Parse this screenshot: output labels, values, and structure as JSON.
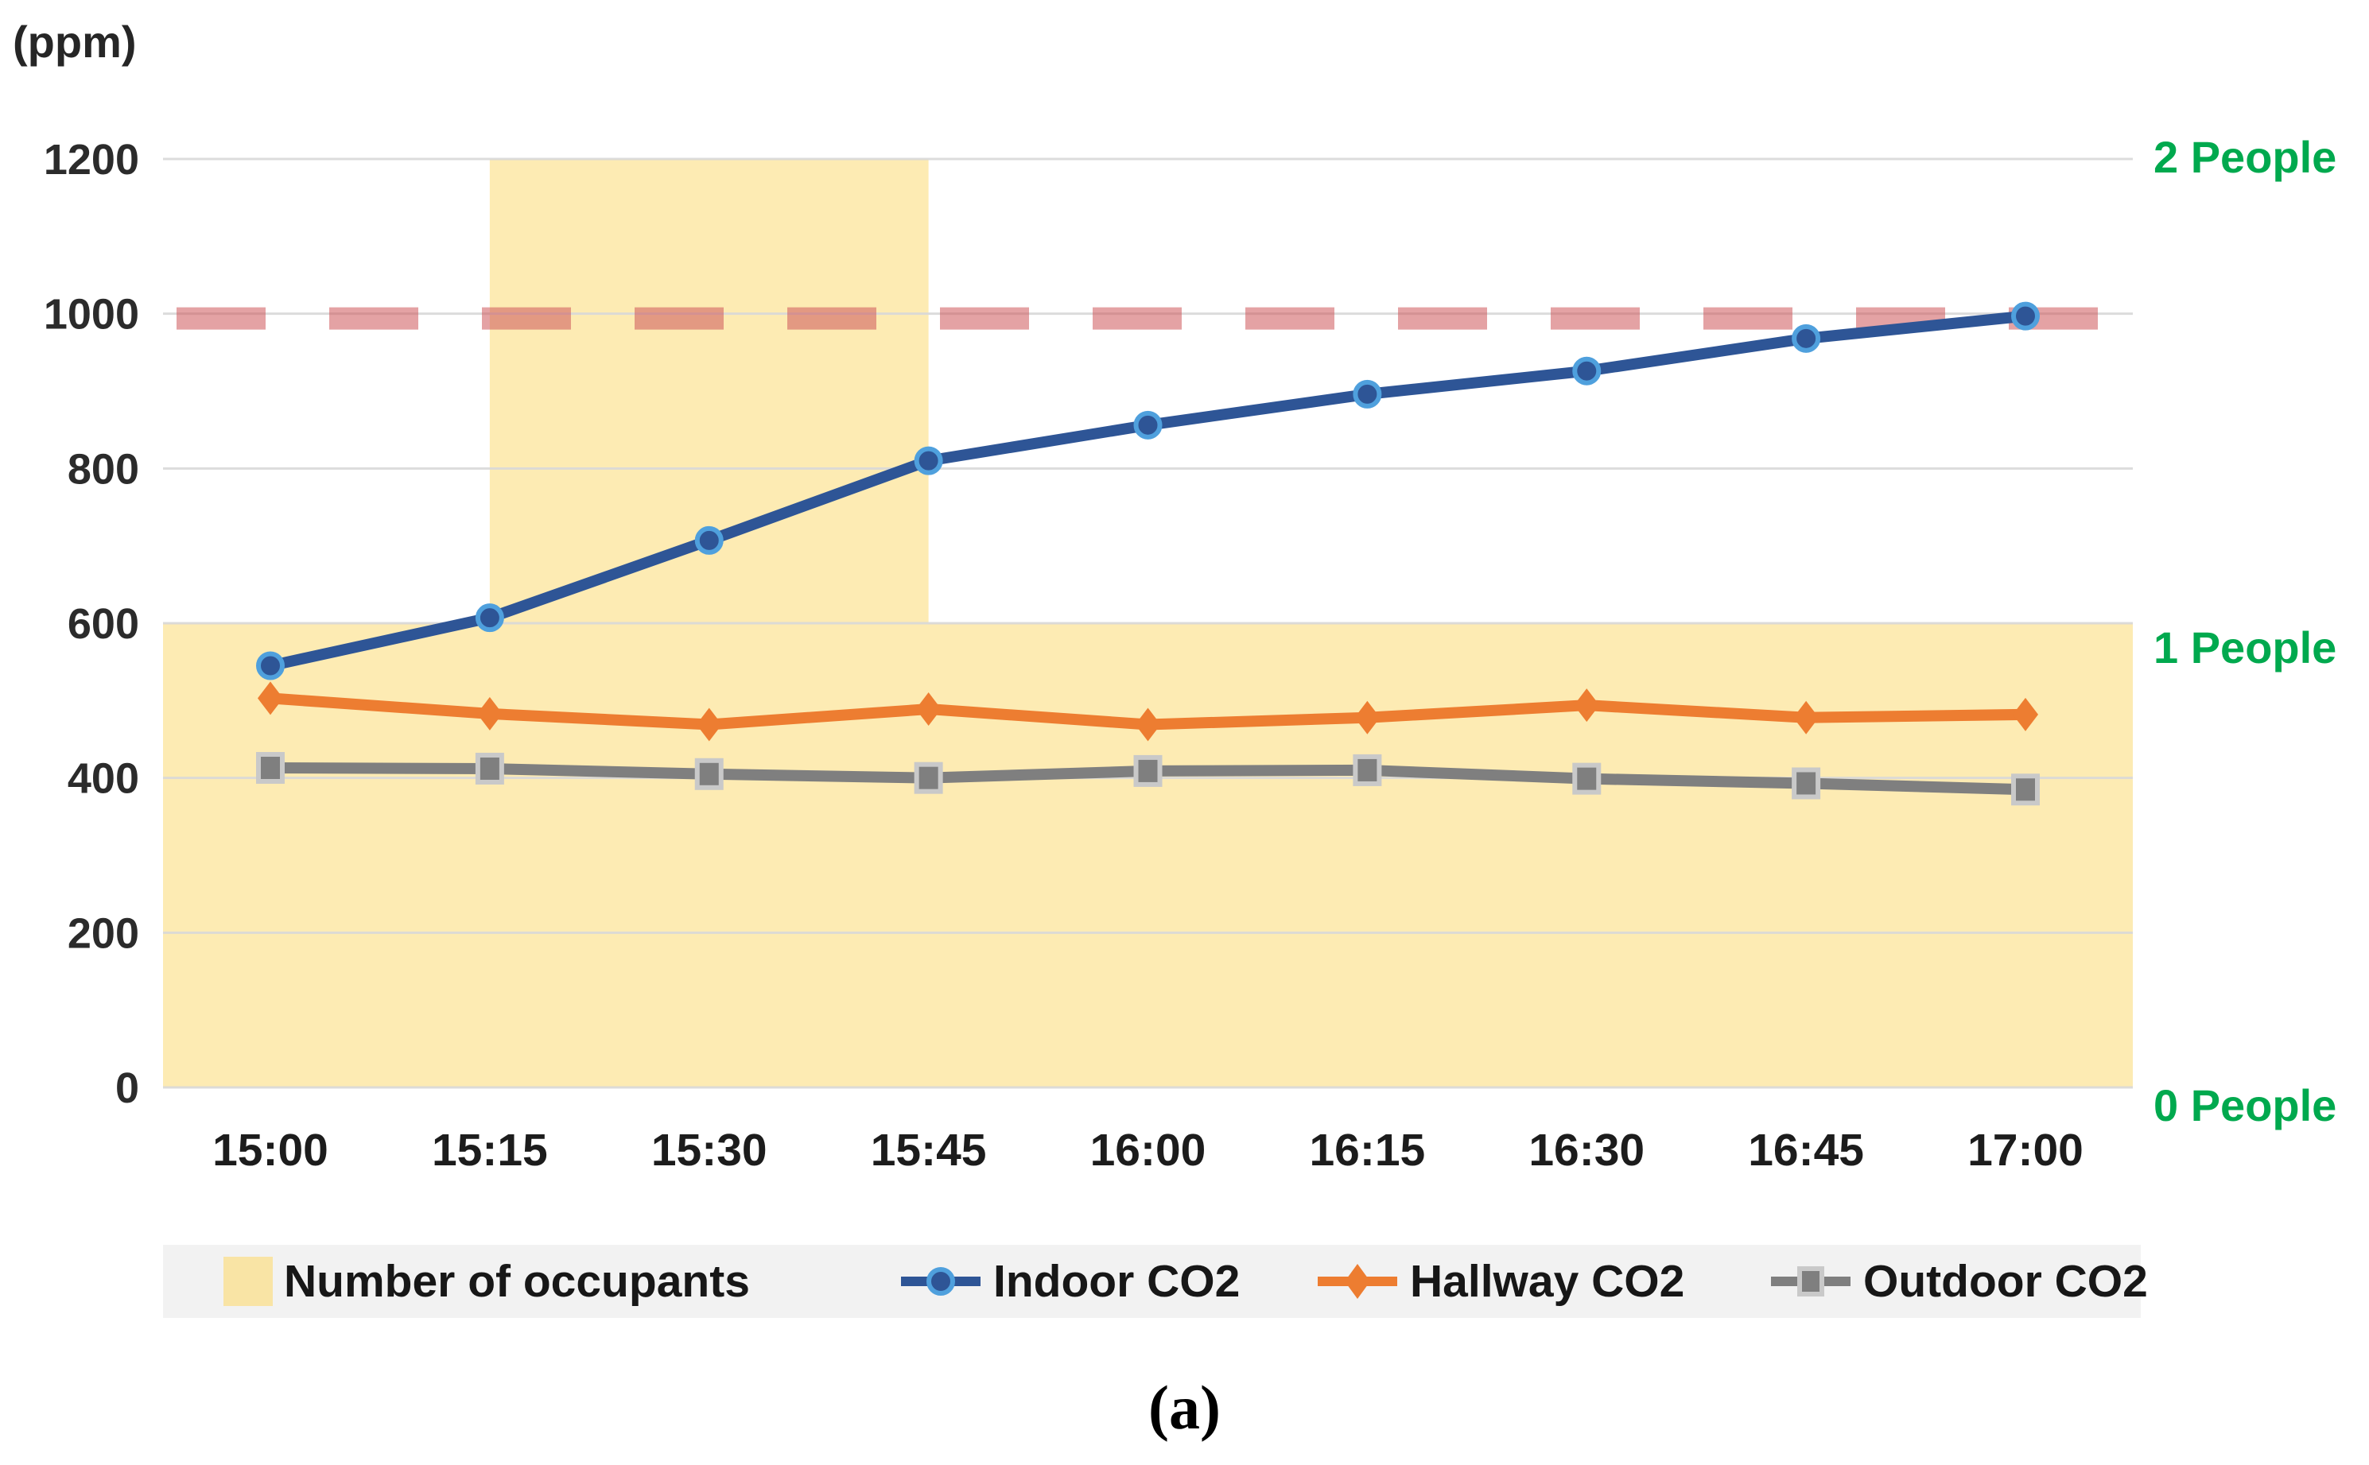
{
  "chart_data": {
    "type": "line",
    "title": "",
    "y_axis": {
      "unit_label": "(ppm)",
      "min": 0,
      "max": 1200,
      "tick_step": 200,
      "ticks": [
        1200,
        1000,
        800,
        600,
        400,
        200,
        0
      ],
      "grid": true,
      "grid_color": "#D9D9D9",
      "tick_color": "#2B2B2B"
    },
    "x": [
      "15:00",
      "15:15",
      "15:30",
      "15:45",
      "16:00",
      "16:15",
      "16:30",
      "16:45",
      "17:00"
    ],
    "x_tick_color": "#1C1C1C",
    "series": [
      {
        "name": "Indoor CO2",
        "color": "#2E5596",
        "marker": "circle",
        "marker_ring": "#4FA0DD",
        "values": [
          545,
          607,
          707,
          810,
          856,
          896,
          926,
          968,
          997
        ]
      },
      {
        "name": "Hallway CO2",
        "color": "#ED7D31",
        "marker": "diamond",
        "marker_ring": "#ED7D31",
        "values": [
          503,
          483,
          469,
          489,
          469,
          478,
          494,
          478,
          482
        ]
      },
      {
        "name": "Outdoor CO2",
        "color": "#7F7F7F",
        "marker": "square",
        "marker_ring": "#C9C9C9",
        "values": [
          413,
          412,
          405,
          400,
          409,
          410,
          399,
          393,
          385
        ]
      }
    ],
    "occupancy": {
      "name": "Number of occupants",
      "fill": "#FDEBB3",
      "ppm_per_person": 600,
      "segments": [
        {
          "from": "15:00",
          "to": "15:15",
          "people": 1
        },
        {
          "from": "15:15",
          "to": "15:45",
          "people": 2
        },
        {
          "from": "15:45",
          "to": "17:00",
          "people": 1
        }
      ]
    },
    "right_axis": {
      "color": "#00A94E",
      "labels": [
        "2 People",
        "1 People",
        "0 People"
      ]
    },
    "threshold_line": {
      "value": 1000,
      "style": "dashed",
      "color": "rgba(205,85,90,0.55)"
    },
    "legend": [
      {
        "label": "Number of occupants",
        "color": "#F9E4A5",
        "glyph": "swatch"
      },
      {
        "label": "Indoor CO2",
        "color": "#2E5596",
        "glyph": "line-circle",
        "ring": "#4FA0DD"
      },
      {
        "label": "Hallway CO2",
        "color": "#ED7D31",
        "glyph": "line-diamond",
        "ring": "#ED7D31"
      },
      {
        "label": "Outdoor CO2",
        "color": "#7F7F7F",
        "glyph": "line-square",
        "ring": "#C9C9C9"
      }
    ],
    "caption": "(a)"
  }
}
